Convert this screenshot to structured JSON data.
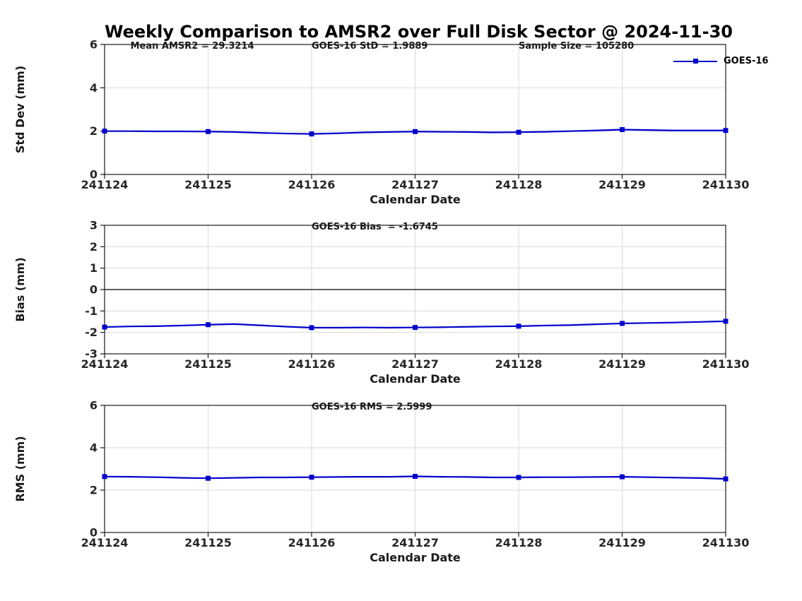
{
  "title": "Weekly Comparison to AMSR2 over Full Disk Sector @ 2024-11-30",
  "legend": {
    "label": "GOES-16",
    "color": "#0000cc",
    "position": "top-right"
  },
  "stats": {
    "mean_amsr2": "29.3214",
    "goes16_std": "1.9889",
    "sample_size": "105280",
    "goes16_bias": "-1.6745",
    "goes16_rms": "2.5999"
  },
  "colors": {
    "line": "#0000cc",
    "grid": "#d9d9d9",
    "axis": "#1a1a1a",
    "tick_label": "#262626",
    "zero_line": "#000000",
    "background": "#ffffff"
  },
  "chart_data": [
    {
      "type": "line",
      "name": "std-dev",
      "title": "",
      "ylabel": "Std Dev (mm)",
      "xlabel": "Calendar Date",
      "ylim": [
        0,
        6
      ],
      "yticks": [
        0,
        2,
        4,
        6
      ],
      "xlim": [
        241124,
        241130
      ],
      "xticks": [
        241124,
        241125,
        241126,
        241127,
        241128,
        241129,
        241130
      ],
      "xtick_labels": [
        "241124",
        "241125",
        "241126",
        "241127",
        "241128",
        "241129",
        "241130"
      ],
      "grid": true,
      "zero_line": false,
      "annotations": [
        {
          "text": "Mean AMSR2 = 29.3214",
          "x": 241124.25
        },
        {
          "text": "GOES-16 StD = 1.9889",
          "x": 241126
        },
        {
          "text": "Sample Size = 105280",
          "x": 241128
        }
      ],
      "series": [
        {
          "name": "GOES-16",
          "color": "#0000cc",
          "marker": "square",
          "markers_at_integer_days": true,
          "x": [
            241124,
            241124.25,
            241124.5,
            241124.75,
            241125,
            241125.25,
            241125.5,
            241125.75,
            241126,
            241126.25,
            241126.5,
            241126.75,
            241127,
            241127.25,
            241127.5,
            241127.75,
            241128,
            241128.25,
            241128.5,
            241128.75,
            241129,
            241129.25,
            241129.5,
            241129.75,
            241130
          ],
          "y": [
            2.0,
            2.0,
            1.99,
            1.99,
            1.98,
            1.96,
            1.92,
            1.89,
            1.87,
            1.9,
            1.94,
            1.96,
            1.98,
            1.97,
            1.96,
            1.94,
            1.95,
            1.97,
            2.0,
            2.03,
            2.07,
            2.05,
            2.03,
            2.03,
            2.03
          ]
        }
      ]
    },
    {
      "type": "line",
      "name": "bias",
      "title": "",
      "ylabel": "Bias (mm)",
      "xlabel": "Calendar Date",
      "ylim": [
        -3,
        3
      ],
      "yticks": [
        -3,
        -2,
        -1,
        0,
        1,
        2,
        3
      ],
      "xlim": [
        241124,
        241130
      ],
      "xticks": [
        241124,
        241125,
        241126,
        241127,
        241128,
        241129,
        241130
      ],
      "xtick_labels": [
        "241124",
        "241125",
        "241126",
        "241127",
        "241128",
        "241129",
        "241130"
      ],
      "grid": true,
      "zero_line": true,
      "annotations": [
        {
          "text": "GOES-16 Bias  = -1.6745",
          "x": 241126
        }
      ],
      "series": [
        {
          "name": "GOES-16",
          "color": "#0000cc",
          "marker": "square",
          "markers_at_integer_days": true,
          "x": [
            241124,
            241124.25,
            241124.5,
            241124.75,
            241125,
            241125.25,
            241125.5,
            241125.75,
            241126,
            241126.25,
            241126.5,
            241126.75,
            241127,
            241127.25,
            241127.5,
            241127.75,
            241128,
            241128.25,
            241128.5,
            241128.75,
            241129,
            241129.25,
            241129.5,
            241129.75,
            241130
          ],
          "y": [
            -1.75,
            -1.72,
            -1.71,
            -1.68,
            -1.64,
            -1.61,
            -1.67,
            -1.73,
            -1.78,
            -1.78,
            -1.77,
            -1.78,
            -1.77,
            -1.76,
            -1.74,
            -1.72,
            -1.71,
            -1.68,
            -1.66,
            -1.62,
            -1.58,
            -1.56,
            -1.54,
            -1.51,
            -1.48
          ]
        }
      ]
    },
    {
      "type": "line",
      "name": "rms",
      "title": "",
      "ylabel": "RMS (mm)",
      "xlabel": "Calendar Date",
      "ylim": [
        0,
        6
      ],
      "yticks": [
        0,
        2,
        4,
        6
      ],
      "xlim": [
        241124,
        241130
      ],
      "xticks": [
        241124,
        241125,
        241126,
        241127,
        241128,
        241129,
        241130
      ],
      "xtick_labels": [
        "241124",
        "241125",
        "241126",
        "241127",
        "241128",
        "241129",
        "241130"
      ],
      "grid": true,
      "zero_line": false,
      "annotations": [
        {
          "text": "GOES-16 RMS = 2.5999",
          "x": 241126
        }
      ],
      "series": [
        {
          "name": "GOES-16",
          "color": "#0000cc",
          "marker": "square",
          "markers_at_integer_days": true,
          "x": [
            241124,
            241124.25,
            241124.5,
            241124.75,
            241125,
            241125.25,
            241125.5,
            241125.75,
            241126,
            241126.25,
            241126.5,
            241126.75,
            241127,
            241127.25,
            241127.5,
            241127.75,
            241128,
            241128.25,
            241128.5,
            241128.75,
            241129,
            241129.25,
            241129.5,
            241129.75,
            241130
          ],
          "y": [
            2.64,
            2.63,
            2.61,
            2.58,
            2.56,
            2.58,
            2.6,
            2.6,
            2.61,
            2.62,
            2.63,
            2.63,
            2.65,
            2.63,
            2.62,
            2.6,
            2.6,
            2.61,
            2.61,
            2.62,
            2.63,
            2.61,
            2.59,
            2.57,
            2.53
          ]
        }
      ]
    }
  ]
}
